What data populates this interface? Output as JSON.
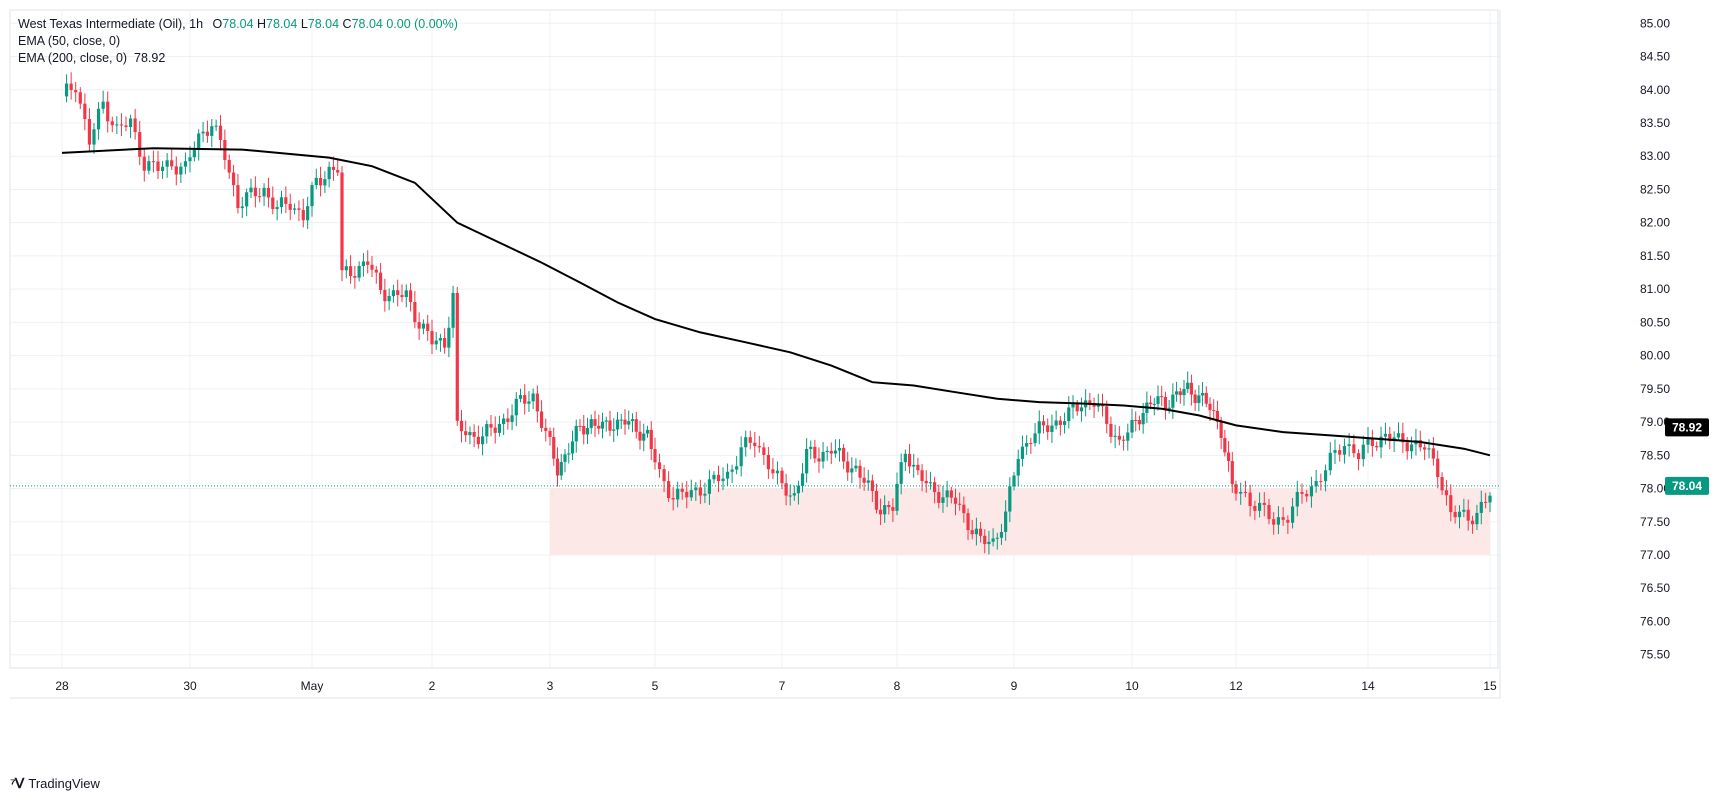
{
  "header": {
    "symbol": "West Texas Intermediate (Oil), 1h",
    "ohlc": [
      {
        "k": "O",
        "v": "78.04"
      },
      {
        "k": "H",
        "v": "78.04"
      },
      {
        "k": "L",
        "v": "78.04"
      },
      {
        "k": "C",
        "v": "78.04"
      }
    ],
    "change": "0.00 (0.00%)",
    "ema50_label": "EMA (50, close, 0)",
    "ema200_label": "EMA (200, close, 0)",
    "ema200_value": "78.92"
  },
  "brand": {
    "name": "TradingView"
  },
  "colors": {
    "up": "#089981",
    "down": "#f23645",
    "ema": "#000000",
    "zone": "#fde8e8",
    "grid": "#eef0f3"
  },
  "chart_data": {
    "type": "candlestick",
    "interval": "1h",
    "ylim": [
      75.3,
      85.2
    ],
    "y_ticks": [
      "75.50",
      "76.00",
      "76.50",
      "77.00",
      "77.50",
      "78.00",
      "78.50",
      "79.00",
      "79.50",
      "80.00",
      "80.50",
      "81.00",
      "81.50",
      "82.00",
      "82.50",
      "83.00",
      "83.50",
      "84.00",
      "84.50",
      "85.00"
    ],
    "x_ticks": [
      "28",
      "30",
      "May",
      "2",
      "3",
      "5",
      "7",
      "8",
      "9",
      "10",
      "12",
      "14",
      "15"
    ],
    "last_price": {
      "label": "78.04",
      "value": 78.04
    },
    "ema200_tag": {
      "label": "78.92",
      "value": 78.92
    },
    "support_zone": {
      "from_tick": "3",
      "to_tick": "15",
      "low": 77.0,
      "high": 78.0
    },
    "price_path": [
      [
        0,
        83.9
      ],
      [
        3,
        84.1
      ],
      [
        6,
        83.2
      ],
      [
        9,
        83.8
      ],
      [
        12,
        83.4
      ],
      [
        15,
        83.5
      ],
      [
        18,
        82.9
      ],
      [
        21,
        82.8
      ],
      [
        24,
        82.9
      ],
      [
        27,
        82.8
      ],
      [
        30,
        83.3
      ],
      [
        33,
        83.5
      ],
      [
        36,
        83.0
      ],
      [
        39,
        82.3
      ],
      [
        42,
        82.4
      ],
      [
        45,
        82.5
      ],
      [
        48,
        82.2
      ],
      [
        51,
        82.3
      ],
      [
        54,
        82.1
      ],
      [
        57,
        82.6
      ],
      [
        60,
        82.8
      ],
      [
        62,
        82.8
      ],
      [
        63,
        81.2
      ],
      [
        66,
        81.3
      ],
      [
        69,
        81.4
      ],
      [
        72,
        81.0
      ],
      [
        75,
        80.9
      ],
      [
        78,
        80.9
      ],
      [
        81,
        80.5
      ],
      [
        84,
        80.2
      ],
      [
        87,
        80.2
      ],
      [
        89,
        80.9
      ],
      [
        90,
        78.9
      ],
      [
        93,
        78.8
      ],
      [
        96,
        78.8
      ],
      [
        99,
        78.9
      ],
      [
        102,
        79.1
      ],
      [
        105,
        79.3
      ],
      [
        108,
        79.4
      ],
      [
        111,
        78.8
      ],
      [
        114,
        78.3
      ],
      [
        117,
        78.6
      ],
      [
        120,
        78.9
      ],
      [
        123,
        79.0
      ],
      [
        126,
        78.9
      ],
      [
        129,
        79.0
      ],
      [
        132,
        79.0
      ],
      [
        135,
        78.9
      ],
      [
        138,
        78.8
      ],
      [
        141,
        78.2
      ],
      [
        144,
        77.9
      ],
      [
        147,
        77.9
      ],
      [
        150,
        78.0
      ],
      [
        153,
        78.1
      ],
      [
        156,
        78.2
      ],
      [
        159,
        78.6
      ],
      [
        162,
        78.7
      ],
      [
        165,
        78.4
      ],
      [
        168,
        78.0
      ],
      [
        171,
        77.9
      ],
      [
        174,
        78.5
      ],
      [
        177,
        78.5
      ],
      [
        180,
        78.6
      ],
      [
        183,
        78.4
      ],
      [
        186,
        78.3
      ],
      [
        189,
        78.0
      ],
      [
        192,
        77.7
      ],
      [
        195,
        77.7
      ],
      [
        198,
        78.6
      ],
      [
        201,
        78.2
      ],
      [
        204,
        78.0
      ],
      [
        207,
        77.9
      ],
      [
        210,
        77.8
      ],
      [
        213,
        77.5
      ],
      [
        216,
        77.2
      ],
      [
        219,
        77.2
      ],
      [
        222,
        77.6
      ],
      [
        225,
        78.5
      ],
      [
        228,
        78.8
      ],
      [
        231,
        78.9
      ],
      [
        234,
        79.0
      ],
      [
        237,
        79.1
      ],
      [
        240,
        79.3
      ],
      [
        243,
        79.3
      ],
      [
        246,
        79.0
      ],
      [
        249,
        78.7
      ],
      [
        252,
        78.9
      ],
      [
        255,
        79.2
      ],
      [
        258,
        79.3
      ],
      [
        261,
        79.3
      ],
      [
        264,
        79.4
      ],
      [
        267,
        79.5
      ],
      [
        270,
        79.4
      ],
      [
        273,
        79.2
      ],
      [
        276,
        78.9
      ],
      [
        279,
        78.0
      ],
      [
        282,
        77.9
      ],
      [
        285,
        77.7
      ],
      [
        288,
        77.5
      ],
      [
        291,
        77.6
      ],
      [
        294,
        77.9
      ],
      [
        297,
        78.1
      ],
      [
        300,
        78.4
      ],
      [
        303,
        78.7
      ],
      [
        306,
        78.5
      ],
      [
        309,
        78.7
      ],
      [
        312,
        78.8
      ],
      [
        315,
        78.7
      ],
      [
        318,
        78.7
      ],
      [
        321,
        78.6
      ],
      [
        324,
        78.3
      ],
      [
        327,
        77.6
      ],
      [
        330,
        77.6
      ],
      [
        333,
        77.6
      ],
      [
        336,
        77.9
      ]
    ],
    "ema200_path": [
      [
        0,
        83.05
      ],
      [
        20,
        83.12
      ],
      [
        40,
        83.1
      ],
      [
        60,
        82.98
      ],
      [
        70,
        82.85
      ],
      [
        80,
        82.6
      ],
      [
        90,
        82.0
      ],
      [
        100,
        81.7
      ],
      [
        110,
        81.4
      ],
      [
        120,
        81.1
      ],
      [
        130,
        80.8
      ],
      [
        140,
        80.55
      ],
      [
        150,
        80.35
      ],
      [
        160,
        80.2
      ],
      [
        170,
        80.05
      ],
      [
        180,
        79.85
      ],
      [
        190,
        79.6
      ],
      [
        200,
        79.55
      ],
      [
        210,
        79.45
      ],
      [
        220,
        79.35
      ],
      [
        230,
        79.3
      ],
      [
        240,
        79.28
      ],
      [
        250,
        79.25
      ],
      [
        260,
        79.2
      ],
      [
        270,
        79.1
      ],
      [
        280,
        78.95
      ],
      [
        290,
        78.85
      ],
      [
        300,
        78.8
      ],
      [
        310,
        78.75
      ],
      [
        320,
        78.7
      ],
      [
        330,
        78.6
      ],
      [
        336,
        78.5
      ]
    ]
  }
}
